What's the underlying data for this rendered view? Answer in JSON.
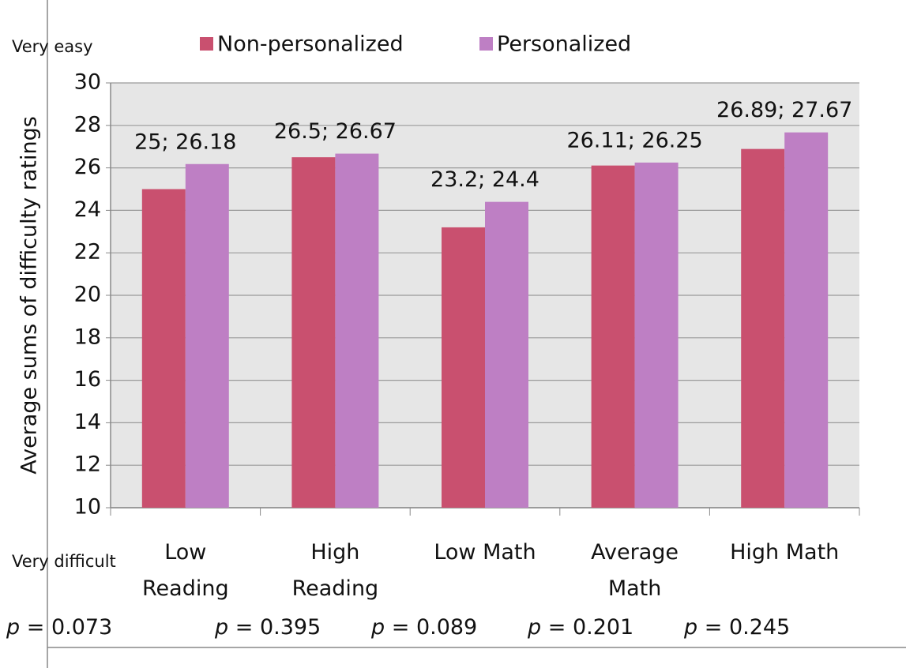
{
  "chart_data": {
    "type": "bar",
    "y_label": "Average sums of difficulty ratings",
    "top_note": "Very easy",
    "bottom_note": "Very difficult",
    "categories": [
      "Low\nReading",
      "High\nReading",
      "Low Math",
      "Average\nMath",
      "High Math"
    ],
    "series": [
      {
        "name": "Non-personalized",
        "color": "#c9506f",
        "values": [
          25,
          26.5,
          23.2,
          26.11,
          26.89
        ]
      },
      {
        "name": "Personalized",
        "color": "#be7fc4",
        "values": [
          26.18,
          26.67,
          24.4,
          26.25,
          27.67
        ]
      }
    ],
    "data_labels": [
      "25; 26.18",
      "26.5; 26.67",
      "23.2; 24.4",
      "26.11; 26.25",
      "26.89; 27.67"
    ],
    "p_symbol": "p",
    "p_values": [
      "= 0.073",
      "= 0.395",
      "= 0.089",
      "= 0.201",
      "= 0.245"
    ],
    "ylim": [
      10,
      30
    ],
    "yticks": [
      10,
      12,
      14,
      16,
      18,
      20,
      22,
      24,
      26,
      28,
      30
    ],
    "grid": true
  }
}
